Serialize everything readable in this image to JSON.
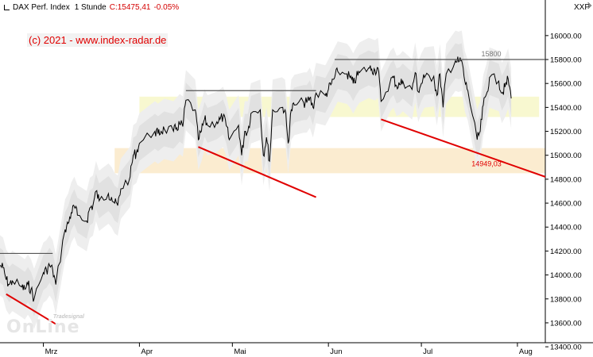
{
  "header": {
    "instrument": "DAX Perf. Index",
    "interval": "1 Stunde",
    "last_label": "C:15475,41",
    "change": "-0.05%"
  },
  "copyright": "(c) 2021 - www.index-radar.de",
  "axis_right_label": "XXP",
  "logo": {
    "tagline": "Tradesignal",
    "wordmark": "OnLine"
  },
  "colors": {
    "price": "#000000",
    "trendline": "#e00000",
    "resistance": "#555555",
    "band": "#d8d8d8",
    "zone_upper": "#f7f7c8",
    "zone_lower": "#fae9c8",
    "header_change": "#d40000"
  },
  "chart_data": {
    "type": "line",
    "title": "DAX Perf. Index 1 Stunde",
    "y_axis": {
      "min": 13300,
      "max": 16150,
      "ticks": [
        13400,
        13600,
        13800,
        14000,
        14200,
        14400,
        14600,
        14800,
        15000,
        15200,
        15400,
        15600,
        15800,
        16000
      ],
      "tick_labels": [
        "13400.00",
        "13600.00",
        "13800.00",
        "14000.00",
        "14200.00",
        "14400.00",
        "14600.00",
        "14800.00",
        "15000.00",
        "15200.00",
        "15400.00",
        "15600.00",
        "15800.00",
        "16000.00"
      ]
    },
    "x_axis": {
      "start": "2021-02-15",
      "end": "2021-08-10",
      "ticks": [
        {
          "date": "2021-03-01",
          "label": "Mrz"
        },
        {
          "date": "2021-04-01",
          "label": "Apr"
        },
        {
          "date": "2021-05-01",
          "label": "Mai"
        },
        {
          "date": "2021-06-01",
          "label": "Jun"
        },
        {
          "date": "2021-07-01",
          "label": "Jul"
        },
        {
          "date": "2021-08-01",
          "label": "Aug"
        }
      ]
    },
    "series": [
      {
        "values": [
          [
            "2021-02-15",
            14080
          ],
          [
            "2021-02-16",
            14060
          ],
          [
            "2021-02-17",
            13960
          ],
          [
            "2021-02-18",
            13920
          ],
          [
            "2021-02-19",
            13950
          ],
          [
            "2021-02-22",
            13900
          ],
          [
            "2021-02-23",
            13880
          ],
          [
            "2021-02-24",
            13920
          ],
          [
            "2021-02-25",
            13880
          ],
          [
            "2021-02-26",
            13800
          ],
          [
            "2021-03-01",
            14020
          ],
          [
            "2021-03-02",
            14040
          ],
          [
            "2021-03-03",
            14080
          ],
          [
            "2021-03-04",
            14040
          ],
          [
            "2021-03-05",
            13920
          ],
          [
            "2021-03-08",
            14380
          ],
          [
            "2021-03-09",
            14430
          ],
          [
            "2021-03-10",
            14520
          ],
          [
            "2021-03-11",
            14570
          ],
          [
            "2021-03-12",
            14500
          ],
          [
            "2021-03-15",
            14450
          ],
          [
            "2021-03-16",
            14560
          ],
          [
            "2021-03-17",
            14580
          ],
          [
            "2021-03-18",
            14700
          ],
          [
            "2021-03-19",
            14620
          ],
          [
            "2021-03-22",
            14680
          ],
          [
            "2021-03-23",
            14650
          ],
          [
            "2021-03-24",
            14600
          ],
          [
            "2021-03-25",
            14580
          ],
          [
            "2021-03-26",
            14720
          ],
          [
            "2021-03-29",
            14820
          ],
          [
            "2021-03-30",
            15000
          ],
          [
            "2021-03-31",
            15020
          ],
          [
            "2021-04-01",
            15100
          ],
          [
            "2021-04-06",
            15200
          ],
          [
            "2021-04-07",
            15180
          ],
          [
            "2021-04-08",
            15200
          ],
          [
            "2021-04-09",
            15220
          ],
          [
            "2021-04-12",
            15200
          ],
          [
            "2021-04-13",
            15230
          ],
          [
            "2021-04-14",
            15260
          ],
          [
            "2021-04-15",
            15240
          ],
          [
            "2021-04-16",
            15460
          ],
          [
            "2021-04-19",
            15380
          ],
          [
            "2021-04-20",
            15130
          ],
          [
            "2021-04-21",
            15200
          ],
          [
            "2021-04-22",
            15300
          ],
          [
            "2021-04-23",
            15250
          ],
          [
            "2021-04-26",
            15280
          ],
          [
            "2021-04-27",
            15300
          ],
          [
            "2021-04-28",
            15320
          ],
          [
            "2021-04-29",
            15250
          ],
          [
            "2021-04-30",
            15130
          ],
          [
            "2021-05-03",
            15250
          ],
          [
            "2021-05-04",
            15000
          ],
          [
            "2021-05-05",
            15200
          ],
          [
            "2021-05-06",
            15200
          ],
          [
            "2021-05-07",
            15350
          ],
          [
            "2021-05-10",
            15380
          ],
          [
            "2021-05-11",
            15000
          ],
          [
            "2021-05-12",
            15150
          ],
          [
            "2021-05-13",
            14950
          ],
          [
            "2021-05-14",
            15380
          ],
          [
            "2021-05-17",
            15400
          ],
          [
            "2021-05-18",
            15380
          ],
          [
            "2021-05-19",
            15100
          ],
          [
            "2021-05-20",
            15380
          ],
          [
            "2021-05-21",
            15420
          ],
          [
            "2021-05-24",
            15440
          ],
          [
            "2021-05-25",
            15440
          ],
          [
            "2021-05-26",
            15480
          ],
          [
            "2021-05-27",
            15400
          ],
          [
            "2021-05-28",
            15520
          ],
          [
            "2021-05-31",
            15500
          ],
          [
            "2021-06-01",
            15550
          ],
          [
            "2021-06-02",
            15600
          ],
          [
            "2021-06-03",
            15650
          ],
          [
            "2021-06-04",
            15700
          ],
          [
            "2021-06-07",
            15680
          ],
          [
            "2021-06-08",
            15650
          ],
          [
            "2021-06-09",
            15600
          ],
          [
            "2021-06-10",
            15650
          ],
          [
            "2021-06-11",
            15690
          ],
          [
            "2021-06-14",
            15730
          ],
          [
            "2021-06-15",
            15720
          ],
          [
            "2021-06-16",
            15710
          ],
          [
            "2021-06-17",
            15730
          ],
          [
            "2021-06-18",
            15450
          ],
          [
            "2021-06-21",
            15620
          ],
          [
            "2021-06-22",
            15650
          ],
          [
            "2021-06-23",
            15580
          ],
          [
            "2021-06-24",
            15590
          ],
          [
            "2021-06-25",
            15620
          ],
          [
            "2021-06-28",
            15550
          ],
          [
            "2021-06-29",
            15690
          ],
          [
            "2021-06-30",
            15530
          ],
          [
            "2021-07-01",
            15600
          ],
          [
            "2021-07-02",
            15650
          ],
          [
            "2021-07-05",
            15660
          ],
          [
            "2021-07-06",
            15500
          ],
          [
            "2021-07-07",
            15680
          ],
          [
            "2021-07-08",
            15400
          ],
          [
            "2021-07-09",
            15680
          ],
          [
            "2021-07-12",
            15790
          ],
          [
            "2021-07-13",
            15780
          ],
          [
            "2021-07-14",
            15790
          ],
          [
            "2021-07-15",
            15620
          ],
          [
            "2021-07-16",
            15540
          ],
          [
            "2021-07-19",
            15130
          ],
          [
            "2021-07-20",
            15200
          ],
          [
            "2021-07-21",
            15420
          ],
          [
            "2021-07-22",
            15510
          ],
          [
            "2021-07-23",
            15650
          ],
          [
            "2021-07-26",
            15620
          ],
          [
            "2021-07-27",
            15520
          ],
          [
            "2021-07-28",
            15570
          ],
          [
            "2021-07-29",
            15640
          ],
          [
            "2021-07-30",
            15475
          ]
        ]
      }
    ],
    "resistance_lines": [
      {
        "from": "2021-02-15",
        "to": "2021-03-04",
        "value": 14180
      },
      {
        "from": "2021-04-16",
        "to": "2021-05-28",
        "value": 15540
      },
      {
        "from": "2021-06-03",
        "to": "2021-08-10",
        "value": 15800,
        "label": "15800"
      }
    ],
    "trend_lines": [
      {
        "from": [
          "2021-02-17",
          13840
        ],
        "to": [
          "2021-03-05",
          13590
        ]
      },
      {
        "from": [
          "2021-04-20",
          15070
        ],
        "to": [
          "2021-05-28",
          14650
        ]
      },
      {
        "from": [
          "2021-06-18",
          15300
        ],
        "to": [
          "2021-08-10",
          14820
        ],
        "label": "14949,03"
      }
    ],
    "zones": [
      {
        "from": "2021-04-01",
        "to": "2021-08-08",
        "low": 15320,
        "high": 15490
      },
      {
        "from": "2021-03-24",
        "to": "2021-08-10",
        "low": 14850,
        "high": 15060
      }
    ]
  }
}
